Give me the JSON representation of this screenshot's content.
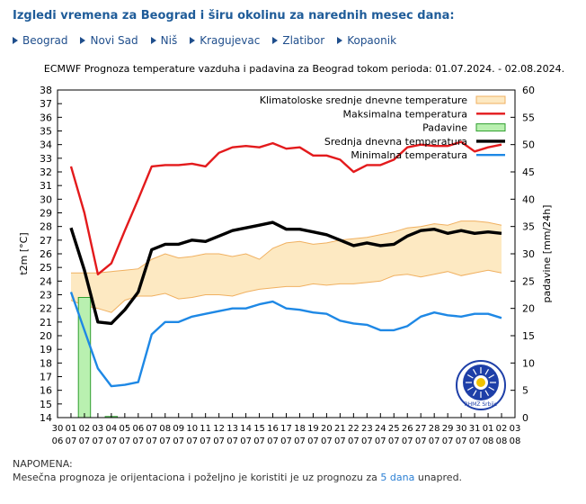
{
  "page": {
    "title": "Izgledi vremena za Beograd i širu okolinu za narednih mesec dana:"
  },
  "nav": {
    "cities": [
      "Beograd",
      "Novi Sad",
      "Niš",
      "Kragujevac",
      "Zlatibor",
      "Kopaonik"
    ]
  },
  "note": {
    "heading": "NAPOMENA:",
    "text_before": "Mesečna prognoza je orijentaciona i poželjno je koristiti je uz prognozu za",
    "link_text": "5 dana",
    "text_after": "unapred."
  },
  "logo": {
    "text": "RHMZ Srbije"
  },
  "colors": {
    "max": "#e31a1c",
    "mean": "#000000",
    "min": "#1e88e5",
    "clim_fill": "#fde9c2",
    "clim_edge": "#f0b060",
    "precip_fill": "#b9f0b0",
    "precip_edge": "#2e9e2e"
  },
  "chart_data": {
    "type": "line",
    "title": "ECMWF Prognoza temperature  vazduha i padavina za Beograd tokom perioda: 01.07.2024. - 02.08.2024.",
    "ylabel": "t2m [°C]",
    "y2label": "padavine [mm/24h]",
    "ylim": [
      14,
      38
    ],
    "y2lim": [
      0,
      60
    ],
    "yticks": [
      14,
      15,
      16,
      17,
      18,
      19,
      20,
      21,
      22,
      23,
      24,
      25,
      26,
      27,
      28,
      29,
      30,
      31,
      32,
      33,
      34,
      35,
      36,
      37,
      38
    ],
    "y2ticks": [
      0,
      5,
      10,
      15,
      20,
      25,
      30,
      35,
      40,
      45,
      50,
      55,
      60
    ],
    "x_day": [
      "30",
      "01",
      "02",
      "03",
      "04",
      "05",
      "06",
      "07",
      "08",
      "09",
      "10",
      "11",
      "12",
      "13",
      "14",
      "15",
      "16",
      "17",
      "18",
      "19",
      "20",
      "21",
      "22",
      "23",
      "24",
      "25",
      "26",
      "27",
      "28",
      "29",
      "30",
      "31",
      "01",
      "02",
      "03"
    ],
    "x_month": [
      "06",
      "07",
      "07",
      "07",
      "07",
      "07",
      "07",
      "07",
      "07",
      "07",
      "07",
      "07",
      "07",
      "07",
      "07",
      "07",
      "07",
      "07",
      "07",
      "07",
      "07",
      "07",
      "07",
      "07",
      "07",
      "07",
      "07",
      "07",
      "07",
      "07",
      "07",
      "07",
      "08",
      "08",
      "08"
    ],
    "legend": [
      "Klimatoloske srednje dnevne temperature",
      "Maksimalna temperatura",
      "Padavine",
      "Srednja dnevna temperatura",
      "Minimalna temperatura"
    ],
    "legend_position": "top-right",
    "series": [
      {
        "name": "Maksimalna temperatura",
        "start_index": 1,
        "values": [
          32.4,
          29.0,
          24.5,
          25.3,
          27.7,
          30.0,
          32.4,
          32.5,
          32.5,
          32.6,
          32.4,
          33.4,
          33.8,
          33.9,
          33.8,
          34.1,
          33.7,
          33.8,
          33.2,
          33.2,
          32.9,
          32.0,
          32.5,
          32.5,
          32.9,
          33.8,
          34.0,
          33.9,
          33.9,
          34.2,
          33.5,
          33.8,
          34.0
        ]
      },
      {
        "name": "Srednja dnevna temperatura",
        "start_index": 1,
        "values": [
          27.9,
          24.8,
          21.0,
          20.9,
          21.9,
          23.2,
          26.3,
          26.7,
          26.7,
          27.0,
          26.9,
          27.3,
          27.7,
          27.9,
          28.1,
          28.3,
          27.8,
          27.8,
          27.6,
          27.4,
          27.0,
          26.6,
          26.8,
          26.6,
          26.7,
          27.3,
          27.7,
          27.8,
          27.5,
          27.7,
          27.5,
          27.6,
          27.5
        ]
      },
      {
        "name": "Minimalna temperatura",
        "start_index": 1,
        "values": [
          23.2,
          20.4,
          17.6,
          16.3,
          16.4,
          16.6,
          20.1,
          21.0,
          21.0,
          21.4,
          21.6,
          21.8,
          22.0,
          22.0,
          22.3,
          22.5,
          22.0,
          21.9,
          21.7,
          21.6,
          21.1,
          20.9,
          20.8,
          20.4,
          20.4,
          20.7,
          21.4,
          21.7,
          21.5,
          21.4,
          21.6,
          21.6,
          21.3
        ]
      },
      {
        "name": "Klimatoloske srednje dnevne temperature",
        "type": "band",
        "start_index": 1,
        "lower": [
          22.6,
          22.2,
          22.0,
          21.7,
          22.6,
          22.9,
          22.9,
          23.1,
          22.7,
          22.8,
          23.0,
          23.0,
          22.9,
          23.2,
          23.4,
          23.5,
          23.6,
          23.6,
          23.8,
          23.7,
          23.8,
          23.8,
          23.9,
          24.0,
          24.4,
          24.5,
          24.3,
          24.5,
          24.7,
          24.4,
          24.6,
          24.8,
          24.6
        ],
        "upper": [
          24.6,
          24.6,
          24.6,
          24.7,
          24.8,
          24.9,
          25.6,
          26.0,
          25.7,
          25.8,
          26.0,
          26.0,
          25.8,
          26.0,
          25.6,
          26.4,
          26.8,
          26.9,
          26.7,
          26.8,
          27.0,
          27.1,
          27.2,
          27.4,
          27.6,
          27.9,
          28.0,
          28.2,
          28.1,
          28.4,
          28.4,
          28.3,
          28.1
        ]
      },
      {
        "name": "Padavine",
        "type": "bar",
        "axis": "right",
        "bars": [
          {
            "index": 2,
            "value": 22.0
          },
          {
            "index": 4,
            "value": 0.2
          }
        ]
      }
    ]
  }
}
